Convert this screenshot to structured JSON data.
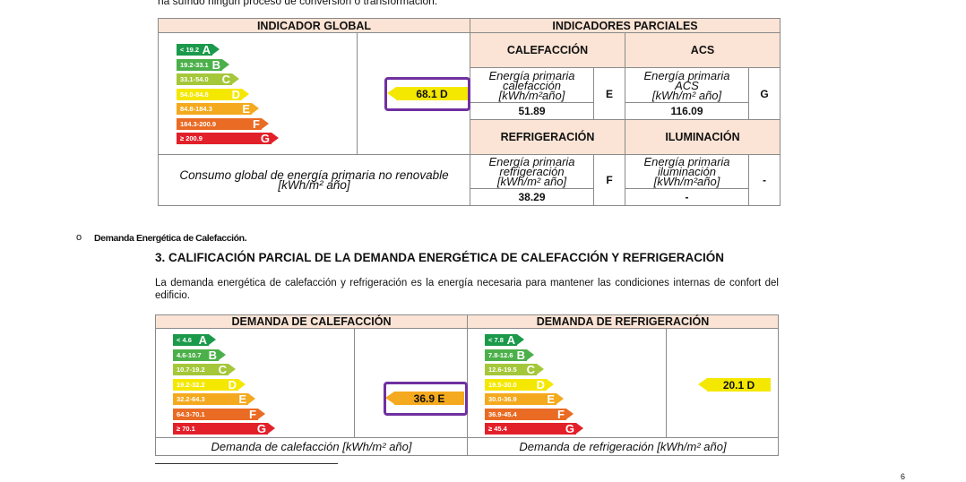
{
  "top_text": "ha sufrido ningún proceso de conversión o transformación.",
  "colors": {
    "A": "#1a9a4a",
    "B": "#4cb04a",
    "C": "#a5c73a",
    "D": "#f5e800",
    "E": "#f4a91e",
    "F": "#ea6b24",
    "G": "#e2202a",
    "header_bg": "#fbe4d5",
    "highlight": "#7030a0"
  },
  "global": {
    "header": "INDICADOR GLOBAL",
    "scale": [
      "< 19.2",
      "19.2-33.1",
      "33.1-54.0",
      "54.0-84.8",
      "84.8-184.3",
      "184.3-200.9",
      "≥ 200.9"
    ],
    "value": "68.1 D",
    "class": "D",
    "footer": "Consumo global de energía primaria no renovable",
    "footer_unit": "[kWh/m² año]"
  },
  "partial": {
    "header": "INDICADORES PARCIALES",
    "calefaccion": {
      "title": "CALEFACCIÓN",
      "l1": "Energía primaria",
      "l2": "calefacción",
      "l3": "[kWh/m²año]",
      "value": "51.89",
      "grade": "E"
    },
    "acs": {
      "title": "ACS",
      "l1": "Energía primaria",
      "l2": "ACS",
      "l3": "[kWh/m² año]",
      "value": "116.09",
      "grade": "G"
    },
    "refrigeracion": {
      "title": "REFRIGERACIÓN",
      "l1": "Energía primaria",
      "l2": "refrigeración",
      "l3": "[kWh/m² año]",
      "value": "38.29",
      "grade": "F"
    },
    "iluminacion": {
      "title": "ILUMINACIÓN",
      "l1": "Energía primaria",
      "l2": "iluminación",
      "l3": "[kWh/m²año]",
      "value": "-",
      "grade": "-"
    }
  },
  "bullet": "Demanda Energética de Calefacción.",
  "section_title": "3. CALIFICACIÓN PARCIAL DE LA DEMANDA ENERGÉTICA DE CALEFACCIÓN Y REFRIGERACIÓN",
  "paragraph": "La demanda energética de calefacción y refrigeración es la energía necesaria para mantener las condiciones internas de confort del edificio.",
  "heating": {
    "header": "DEMANDA DE CALEFACCIÓN",
    "scale": [
      "< 4.6",
      "4.6-10.7",
      "10.7-19.2",
      "19.2-32.2",
      "32.2-64.3",
      "64.3-70.1",
      "≥ 70.1"
    ],
    "value": "36.9 E",
    "class": "E",
    "footer": "Demanda de calefacción [kWh/m² año]"
  },
  "cooling": {
    "header": "DEMANDA DE REFRIGERACIÓN",
    "scale": [
      "< 7.8",
      "7.8-12.6",
      "12.6-19.5",
      "19.5-30.0",
      "30.0-36.9",
      "36.9-45.4",
      "≥ 45.4"
    ],
    "value": "20.1 D",
    "class": "D",
    "footer": "Demanda de refrigeración [kWh/m² año]"
  },
  "page_number": "6"
}
